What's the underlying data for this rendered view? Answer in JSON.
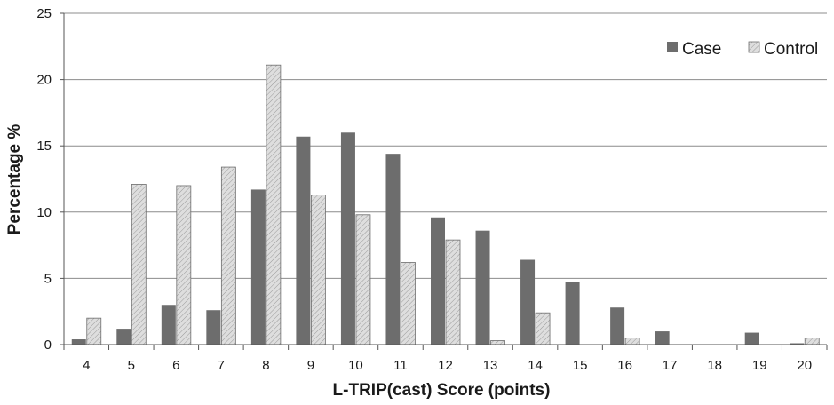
{
  "chart_data": {
    "type": "bar",
    "title": "",
    "xlabel": "L-TRIP(cast) Score (points)",
    "ylabel": "Percentage %",
    "categories": [
      "4",
      "5",
      "6",
      "7",
      "8",
      "9",
      "10",
      "11",
      "12",
      "13",
      "14",
      "15",
      "16",
      "17",
      "18",
      "19",
      "20"
    ],
    "series": [
      {
        "name": "Case",
        "values": [
          0.4,
          1.2,
          3.0,
          2.6,
          11.7,
          15.7,
          16.0,
          14.4,
          9.6,
          8.6,
          6.4,
          4.7,
          2.8,
          1.0,
          0.0,
          0.9,
          0.1
        ]
      },
      {
        "name": "Control",
        "values": [
          2.0,
          12.1,
          12.0,
          13.4,
          21.1,
          11.3,
          9.8,
          6.2,
          7.9,
          0.3,
          2.4,
          0.0,
          0.5,
          0.0,
          0.0,
          0.0,
          0.5
        ]
      }
    ],
    "ylim": [
      0,
      25
    ],
    "yticks": [
      0,
      5,
      10,
      15,
      20,
      25
    ],
    "grid": true,
    "legend_position": "top-right"
  },
  "colors": {
    "case": "#6d6d6d",
    "control": "#dedede",
    "control_hatch": "#9a9a9a",
    "grid": "#8c8c8c",
    "axis": "#555555"
  }
}
